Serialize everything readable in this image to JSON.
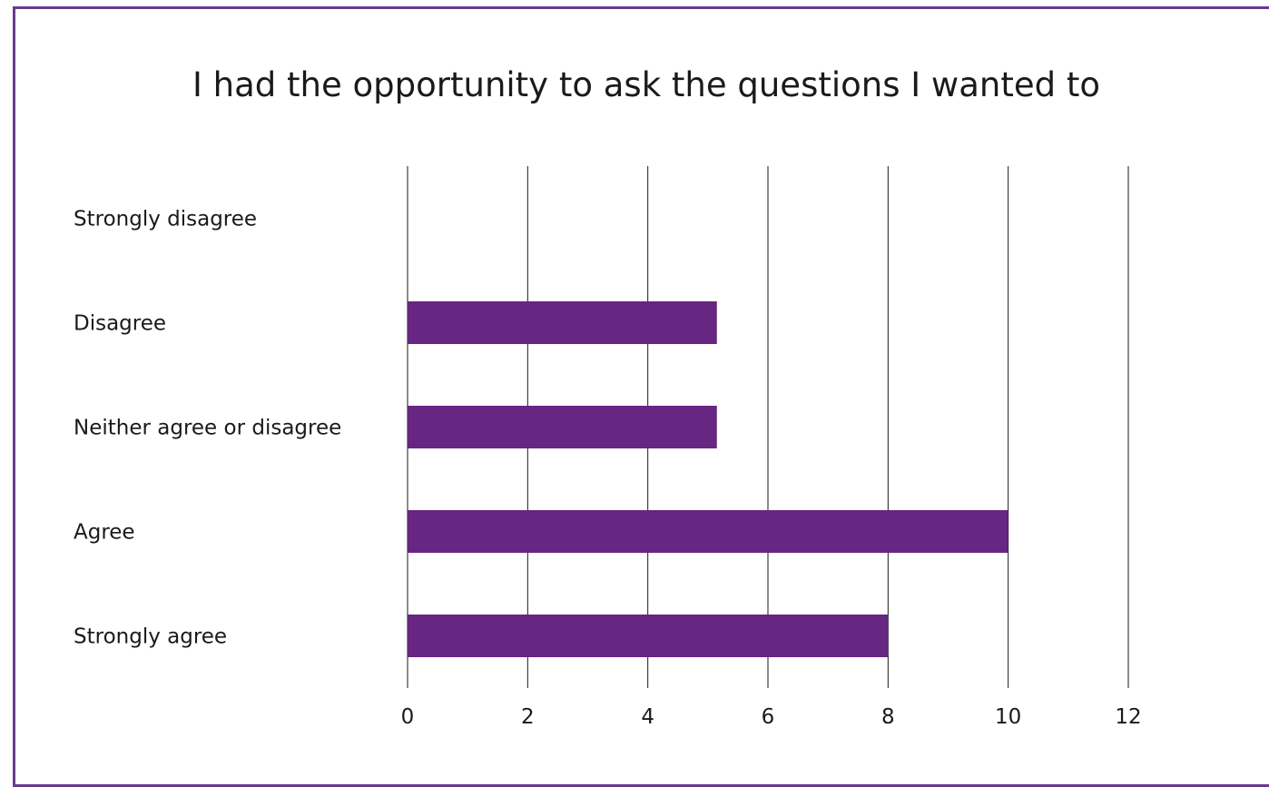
{
  "chart_data": {
    "type": "bar",
    "orientation": "horizontal",
    "title": "I had the opportunity to ask the questions I wanted to",
    "categories": [
      "Strongly disagree",
      "Disagree",
      "Neither agree or disagree",
      "Agree",
      "Strongly agree"
    ],
    "values": [
      0,
      5.15,
      5.15,
      10,
      8
    ],
    "xlim": [
      0,
      12
    ],
    "xticks": [
      "0",
      "2",
      "4",
      "6",
      "8",
      "10",
      "12"
    ],
    "xlabel": "",
    "ylabel": "",
    "grid": true,
    "legend": "none",
    "bar_color": "#662681",
    "grid_color": "#1a1a1a",
    "frame_color": "#6a3a8c"
  }
}
